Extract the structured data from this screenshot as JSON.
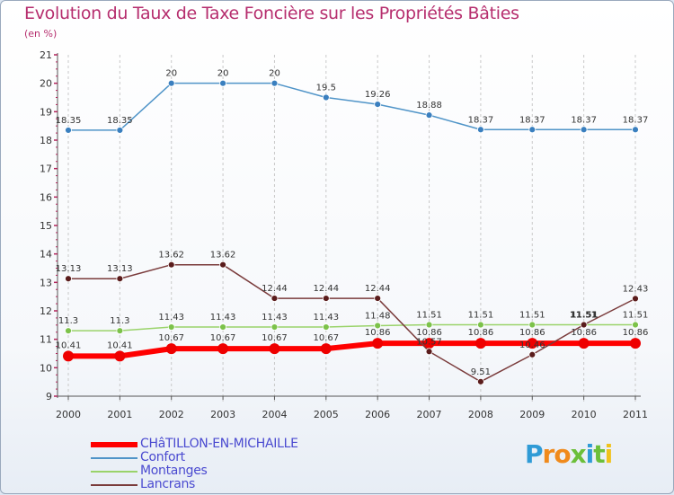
{
  "colors": {
    "title": "#b62e6e",
    "legend_text": "#4a4ad0"
  },
  "chart_data": {
    "type": "line",
    "title": "Evolution du Taux de Taxe Foncière sur les Propriétés Bâties",
    "ylabel": "(en %)",
    "xlabel": "",
    "ylim": [
      9,
      21
    ],
    "yticks": [
      "9",
      "10",
      "11",
      "12",
      "13",
      "14",
      "15",
      "16",
      "17",
      "18",
      "19",
      "20",
      "21"
    ],
    "categories": [
      "2000",
      "2001",
      "2002",
      "2003",
      "2004",
      "2005",
      "2006",
      "2007",
      "2008",
      "2009",
      "2010",
      "2011"
    ],
    "series": [
      {
        "name": "Confort",
        "color": "#4f94c8",
        "marker": "#3a7fbf",
        "width": 1.5,
        "values": [
          18.35,
          18.35,
          20,
          20,
          20,
          19.5,
          19.26,
          18.88,
          18.37,
          18.37,
          18.37,
          18.37
        ],
        "labels": [
          "18.35",
          "18.35",
          "20",
          "20",
          "20",
          "19.5",
          "19.26",
          "18.88",
          "18.37",
          "18.37",
          "18.37",
          "18.37"
        ]
      },
      {
        "name": "Lancrans",
        "color": "#7a3b3b",
        "marker": "#5a1c1c",
        "width": 1.5,
        "values": [
          13.13,
          13.13,
          13.62,
          13.62,
          12.44,
          12.44,
          12.44,
          10.57,
          9.51,
          10.46,
          11.51,
          12.43
        ],
        "labels": [
          "13.13",
          "13.13",
          "13.62",
          "13.62",
          "12.44",
          "12.44",
          "12.44",
          "10.57",
          "9.51",
          "10.46",
          "11.51",
          "12.43"
        ]
      },
      {
        "name": "Montanges",
        "color": "#9ad36a",
        "marker": "#7cc24a",
        "width": 1.5,
        "values": [
          11.3,
          11.3,
          11.43,
          11.43,
          11.43,
          11.43,
          11.48,
          11.51,
          11.51,
          11.51,
          11.51,
          11.51
        ],
        "labels": [
          "11.3",
          "11.3",
          "11.43",
          "11.43",
          "11.43",
          "11.43",
          "11.48",
          "11.51",
          "11.51",
          "11.51",
          "11.51",
          "11.51"
        ]
      },
      {
        "name": "CHâTILLON-EN-MICHAILLE",
        "color": "#ff0000",
        "marker": "#ee0000",
        "width": 6,
        "values": [
          10.41,
          10.41,
          10.67,
          10.67,
          10.67,
          10.67,
          10.86,
          10.86,
          10.86,
          10.86,
          10.86,
          10.86
        ],
        "labels": [
          "10.41",
          "10.41",
          "10.67",
          "10.67",
          "10.67",
          "10.67",
          "10.86",
          "10.86",
          "10.86",
          "10.86",
          "10.86",
          "10.86"
        ]
      }
    ],
    "legend_position": "bottom-left",
    "legend": [
      "CHâTILLON-EN-MICHAILLE",
      "Confort",
      "Montanges",
      "Lancrans"
    ]
  },
  "brand": {
    "letters": [
      "P",
      "r",
      "o",
      "x",
      "i",
      "t",
      "i"
    ],
    "colors": [
      "#2f9bd6",
      "#f08a1c",
      "#f08a1c",
      "#6cbf3a",
      "#2f9bd6",
      "#6cbf3a",
      "#f0c21c"
    ]
  }
}
